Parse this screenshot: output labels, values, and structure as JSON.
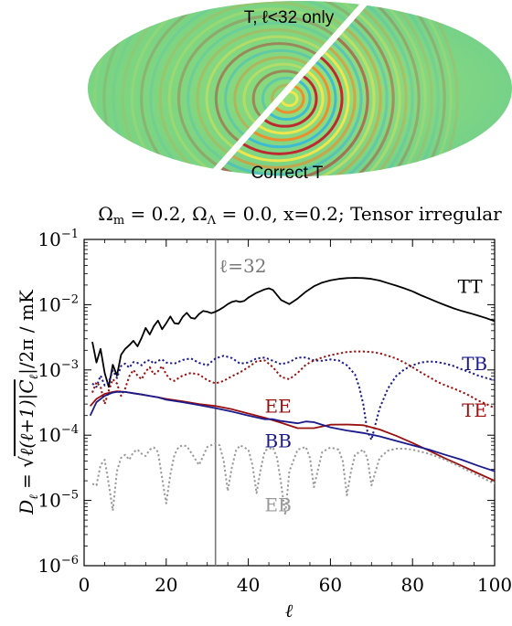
{
  "map": {
    "upper_label": "T, ℓ<32 only",
    "lower_label": "Correct T",
    "colors": {
      "background": "#7fd07a",
      "ring_red": "#c0202a",
      "ring_yellow": "#f4e64a",
      "ring_cyan": "#3ab8d8",
      "ring_orange": "#f08a2a",
      "divider": "#ffffff"
    }
  },
  "chart_data": {
    "type": "line",
    "title": "Ωm = 0.2, ΩΛ = 0.0, x=0.2; Tensor irregular",
    "title_parts": {
      "om": "Ω",
      "om_sub": "m",
      "om_val": " = 0.2, ",
      "ol": "Ω",
      "ol_sub": "Λ",
      "ol_val": " = 0.0, x=0.2; Tensor irregular"
    },
    "xlabel": "ℓ",
    "ylabel": "D_ℓ = √(ℓ(ℓ+1)|C_ℓ|/2π) / mK",
    "ylabel_parts": {
      "d": "D",
      "dsub": "ℓ",
      "eq": " = ",
      "rad": "ℓ(ℓ+1)|C",
      "rsub": "ℓ",
      "rend": "|/2π",
      "unit": " / mK"
    },
    "x_scale": "linear",
    "y_scale": "log",
    "xlim": [
      0,
      100
    ],
    "ylim": [
      1e-06,
      0.1
    ],
    "xticks": [
      "0",
      "20",
      "40",
      "60",
      "80",
      "100"
    ],
    "yticks": [
      {
        "base": "10",
        "exp": "−6",
        "value": 1e-06
      },
      {
        "base": "10",
        "exp": "−5",
        "value": 1e-05
      },
      {
        "base": "10",
        "exp": "−4",
        "value": 0.0001
      },
      {
        "base": "10",
        "exp": "−3",
        "value": 0.001
      },
      {
        "base": "10",
        "exp": "−2",
        "value": 0.01
      },
      {
        "base": "10",
        "exp": "−1",
        "value": 0.1
      }
    ],
    "grid": false,
    "vline": {
      "x": 32,
      "label": "ℓ=32",
      "color": "#777777"
    },
    "series": [
      {
        "name": "TT",
        "color": "#000000",
        "style": "solid",
        "x": [
          2,
          3,
          4,
          5,
          6,
          7,
          8,
          9,
          10,
          11,
          12,
          13,
          14,
          15,
          16,
          17,
          18,
          19,
          20,
          21,
          22,
          23,
          24,
          25,
          26,
          27,
          28,
          29,
          30,
          31,
          32,
          33,
          34,
          35,
          36,
          37,
          38,
          39,
          40,
          42,
          44,
          45,
          46,
          48,
          50,
          52,
          54,
          56,
          58,
          60,
          62,
          64,
          66,
          68,
          70,
          72,
          74,
          76,
          78,
          80,
          82,
          84,
          86,
          88,
          90,
          92,
          94,
          96,
          98,
          100
        ],
        "y": [
          0.0027,
          0.0013,
          0.0021,
          0.0009,
          0.00055,
          0.0012,
          0.00082,
          0.0017,
          0.0021,
          0.0024,
          0.0028,
          0.0023,
          0.0031,
          0.0044,
          0.0035,
          0.0047,
          0.0057,
          0.0042,
          0.0052,
          0.0066,
          0.0052,
          0.0051,
          0.0065,
          0.0075,
          0.0063,
          0.0061,
          0.0072,
          0.008,
          0.0078,
          0.0074,
          0.0078,
          0.0084,
          0.0092,
          0.0102,
          0.011,
          0.0114,
          0.011,
          0.0114,
          0.0128,
          0.0152,
          0.0172,
          0.0178,
          0.0168,
          0.0118,
          0.0102,
          0.0124,
          0.0158,
          0.0192,
          0.0218,
          0.0236,
          0.0248,
          0.0256,
          0.0258,
          0.0256,
          0.0248,
          0.0234,
          0.0214,
          0.0196,
          0.0178,
          0.016,
          0.014,
          0.0124,
          0.011,
          0.0098,
          0.0088,
          0.008,
          0.0074,
          0.0068,
          0.0062,
          0.0056
        ]
      },
      {
        "name": "TB",
        "color": "#1a1a8c",
        "style": "dotted",
        "x": [
          2,
          3,
          4,
          5,
          6,
          7,
          8,
          9,
          10,
          11,
          12,
          13,
          14,
          15,
          16,
          17,
          18,
          19,
          20,
          22,
          24,
          26,
          28,
          30,
          32,
          34,
          36,
          38,
          40,
          42,
          44,
          46,
          48,
          50,
          52,
          54,
          56,
          58,
          60,
          62,
          64,
          66,
          67,
          68,
          69,
          70,
          71,
          72,
          74,
          76,
          78,
          80,
          82,
          84,
          86,
          88,
          90,
          92,
          94,
          96,
          98,
          100
        ],
        "y": [
          0.00062,
          0.00055,
          0.00082,
          0.00058,
          0.00065,
          0.00098,
          0.00075,
          0.00115,
          0.00125,
          0.00108,
          0.00132,
          0.00128,
          0.00118,
          0.00135,
          0.00142,
          0.00125,
          0.00138,
          0.00145,
          0.0013,
          0.00125,
          0.00142,
          0.0015,
          0.00128,
          0.00118,
          0.0015,
          0.00165,
          0.00152,
          0.00125,
          0.0013,
          0.0015,
          0.00155,
          0.00138,
          0.00122,
          0.00132,
          0.00155,
          0.00155,
          0.0014,
          0.00138,
          0.00145,
          0.0014,
          0.00118,
          0.00085,
          0.00055,
          0.0003,
          0.000115,
          8.5e-05,
          0.00015,
          0.00026,
          0.00052,
          0.0008,
          0.00102,
          0.00118,
          0.0013,
          0.00135,
          0.00132,
          0.00125,
          0.00115,
          0.00102,
          0.00092,
          0.00082,
          0.00075,
          0.0007
        ]
      },
      {
        "name": "TE",
        "color": "#9a1010",
        "style": "dotted",
        "x": [
          2,
          3,
          4,
          5,
          6,
          7,
          8,
          9,
          10,
          11,
          12,
          13,
          14,
          15,
          16,
          17,
          18,
          19,
          20,
          21,
          22,
          23,
          24,
          26,
          28,
          30,
          32,
          34,
          36,
          38,
          40,
          42,
          44,
          46,
          48,
          50,
          52,
          54,
          56,
          58,
          60,
          62,
          64,
          66,
          68,
          70,
          72,
          74,
          76,
          78,
          80,
          82,
          84,
          86,
          88,
          90,
          92,
          94,
          96,
          98,
          100
        ],
        "y": [
          0.00045,
          0.00065,
          0.00055,
          0.0003,
          0.00048,
          0.00072,
          0.00062,
          0.0004,
          0.00052,
          0.0008,
          0.001,
          0.00082,
          0.00072,
          0.00095,
          0.0011,
          0.00085,
          0.00095,
          0.00115,
          0.00085,
          0.00072,
          0.00068,
          0.00075,
          0.00082,
          0.0009,
          0.00085,
          0.0007,
          0.00062,
          0.00068,
          0.0008,
          0.00092,
          0.0011,
          0.00135,
          0.0014,
          0.0011,
          0.00078,
          0.00072,
          0.0009,
          0.0012,
          0.0014,
          0.00155,
          0.00168,
          0.00178,
          0.00188,
          0.00192,
          0.00192,
          0.00188,
          0.0018,
          0.00165,
          0.0015,
          0.0013,
          0.0011,
          0.00092,
          0.00078,
          0.00066,
          0.00058,
          0.00052,
          0.00046,
          0.0004,
          0.00034,
          0.0003,
          0.00026
        ]
      },
      {
        "name": "EE",
        "color": "#9a1010",
        "style": "solid",
        "x": [
          1.5,
          3,
          5,
          7,
          8,
          10,
          12,
          14,
          16,
          18,
          20,
          24,
          28,
          32,
          36,
          40,
          44,
          48,
          52,
          56,
          60,
          64,
          68,
          72,
          76,
          80,
          84,
          88,
          92,
          96,
          100
        ],
        "y": [
          0.00028,
          0.00036,
          0.00043,
          0.00046,
          0.00047,
          0.00046,
          0.00044,
          0.00042,
          0.0004,
          0.00038,
          0.00036,
          0.00033,
          0.0003,
          0.00028,
          0.00025,
          0.000215,
          0.000185,
          0.000155,
          0.000128,
          0.000128,
          0.000145,
          0.000146,
          0.000142,
          0.000122,
          9.8e-05,
          7.6e-05,
          5.8e-05,
          4.4e-05,
          3.4e-05,
          2.6e-05,
          2e-05
        ]
      },
      {
        "name": "BB",
        "color": "#1a1a8c",
        "style": "solid",
        "x": [
          1.5,
          3,
          5,
          7,
          8,
          10,
          12,
          14,
          16,
          18,
          20,
          24,
          28,
          32,
          36,
          40,
          44,
          46,
          48,
          52,
          54,
          56,
          60,
          64,
          68,
          72,
          76,
          80,
          84,
          88,
          92,
          96,
          100
        ],
        "y": [
          0.0002,
          0.00032,
          0.0004,
          0.00045,
          0.00046,
          0.00046,
          0.00044,
          0.00042,
          0.0004,
          0.00038,
          0.00035,
          0.00032,
          0.00029,
          0.00026,
          0.00023,
          0.0002,
          0.000176,
          0.000176,
          0.000165,
          0.000152,
          0.000162,
          0.000158,
          0.000132,
          0.000118,
          0.000108,
          9.6e-05,
          8.2e-05,
          7e-05,
          6e-05,
          5e-05,
          4.2e-05,
          3.4e-05,
          2.8e-05
        ]
      },
      {
        "name": "EB",
        "color": "#999999",
        "style": "dotted",
        "x": [
          2,
          3,
          4,
          5,
          6,
          7,
          8,
          9,
          10,
          11,
          12,
          13,
          14,
          15,
          16,
          17,
          18,
          19,
          20,
          21,
          22,
          23,
          24,
          25,
          26,
          28,
          30,
          32,
          33,
          34,
          35,
          36,
          37,
          38,
          40,
          41,
          42,
          43,
          44,
          46,
          47,
          48,
          49,
          50,
          52,
          54,
          55,
          56,
          57,
          58,
          60,
          62,
          63,
          64,
          65,
          66,
          68,
          69,
          70,
          71,
          72,
          74,
          76,
          78,
          80,
          84,
          88,
          92,
          96,
          100
        ],
        "y": [
          1.8e-05,
          1.7e-05,
          3.5e-05,
          4.2e-05,
          1.8e-05,
          7e-06,
          2.8e-05,
          4.5e-05,
          5e-05,
          4.2e-05,
          5.5e-05,
          6e-05,
          5.2e-05,
          4.8e-05,
          6e-05,
          6.5e-05,
          5.5e-05,
          2.2e-05,
          9e-06,
          2.5e-05,
          5e-05,
          6.6e-05,
          7e-05,
          6.8e-05,
          5.5e-05,
          3.5e-05,
          6.6e-05,
          7.5e-05,
          7e-05,
          4e-05,
          1.4e-05,
          3.2e-05,
          5.8e-05,
          7e-05,
          6e-05,
          3.5e-05,
          1.3e-05,
          3e-05,
          5.8e-05,
          6.5e-05,
          4.5e-05,
          1.8e-05,
          6e-06,
          2.8e-05,
          6e-05,
          6.6e-05,
          4.5e-05,
          1.6e-05,
          3e-05,
          5.5e-05,
          6.5e-05,
          6e-05,
          4e-05,
          1.2e-05,
          2.8e-05,
          5e-05,
          6e-05,
          4.5e-05,
          1.7e-05,
          2.8e-05,
          4.5e-05,
          5.8e-05,
          6.2e-05,
          6.2e-05,
          6e-05,
          5.2e-05,
          4.2e-05,
          3.2e-05,
          2.4e-05,
          1.8e-05
        ]
      }
    ],
    "annotations": [
      {
        "text": "TT",
        "x": 91,
        "y": 0.019,
        "color": "#000000"
      },
      {
        "text": "TB",
        "x": 92,
        "y": 0.00125,
        "color": "#1a1a8c"
      },
      {
        "text": "TE",
        "x": 92,
        "y": 0.00024,
        "color": "#9a1010"
      },
      {
        "text": "EE",
        "x": 44,
        "y": 0.00028,
        "color": "#9a1010"
      },
      {
        "text": "BB",
        "x": 44,
        "y": 8.2e-05,
        "color": "#1a1a8c"
      },
      {
        "text": "EB",
        "x": 44,
        "y": 8.5e-06,
        "color": "#999999"
      }
    ]
  }
}
